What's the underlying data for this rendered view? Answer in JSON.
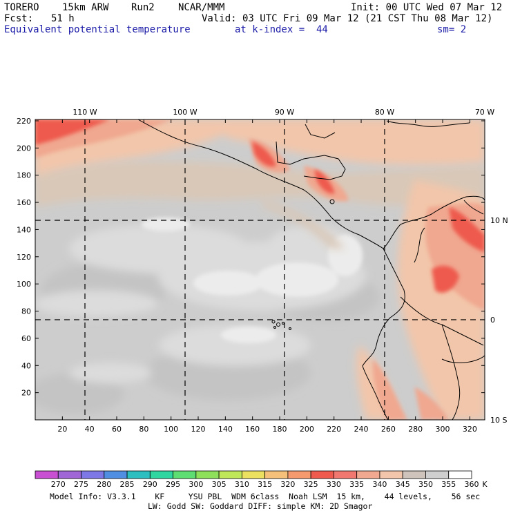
{
  "header": {
    "model": "TORERO",
    "resolution": "15km ARW",
    "run": "Run2",
    "org": "NCAR/MMM",
    "init": "Init: 00 UTC Wed 07 Mar 12",
    "fcst_label": "Fcst:",
    "fcst_value": "51 h",
    "valid": "Valid: 03 UTC Fri 09 Mar 12 (21 CST Thu 08 Mar 12)",
    "field": "Equivalent potential temperature",
    "level": "at k-index =  44",
    "smoothing": "sm= 2"
  },
  "map": {
    "x_ticks": [
      "20",
      "40",
      "60",
      "80",
      "100",
      "120",
      "140",
      "160",
      "180",
      "200",
      "220",
      "240",
      "260",
      "280",
      "300",
      "320"
    ],
    "y_ticks": [
      "20",
      "40",
      "60",
      "80",
      "100",
      "120",
      "140",
      "160",
      "180",
      "200",
      "220"
    ],
    "lon_labels": [
      "110 W",
      "100 W",
      "90 W",
      "80 W",
      "70 W"
    ],
    "lat_labels": [
      "10 N",
      "0",
      "10 S"
    ]
  },
  "colorbar": {
    "unit": "K",
    "levels": [
      "270",
      "275",
      "280",
      "285",
      "290",
      "295",
      "300",
      "305",
      "310",
      "315",
      "320",
      "325",
      "330",
      "335",
      "340",
      "345",
      "350",
      "355",
      "360"
    ],
    "colors": [
      "#c84fd2",
      "#a066d6",
      "#7e78e6",
      "#4f8ee0",
      "#2dbfbf",
      "#30d6a0",
      "#5ede72",
      "#8ee05a",
      "#c0e65a",
      "#ece060",
      "#f4c07a",
      "#f49a6e",
      "#ee5a4e",
      "#f07870",
      "#f0a890",
      "#f2c6aa",
      "#cec4bc",
      "#cfcfcf",
      "#ffffff"
    ]
  },
  "footer": {
    "line1": "Model Info: V3.3.1    KF     YSU PBL  WDM 6class  Noah LSM  15 km,    44 levels,    56 sec",
    "line2": "LW: Godd SW: Goddard DIFF: simple KM: 2D Smagor"
  }
}
